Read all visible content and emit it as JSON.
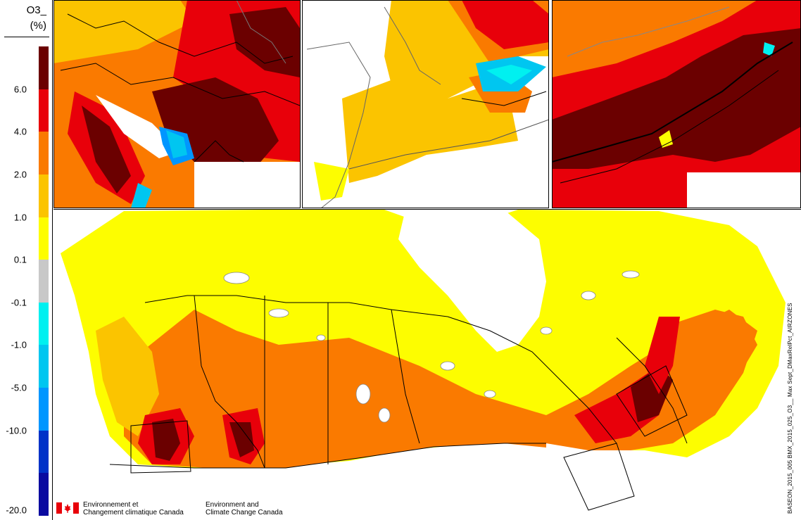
{
  "legend": {
    "title_line1": "O3_",
    "title_line2": "(%)",
    "bins": [
      {
        "color": "#6b0000"
      },
      {
        "color": "#e8000a"
      },
      {
        "color": "#fa7a00"
      },
      {
        "color": "#fbc400"
      },
      {
        "color": "#fdfd00"
      },
      {
        "color": "#c8c8c8"
      },
      {
        "color": "#00f0f0"
      },
      {
        "color": "#00c6f0"
      },
      {
        "color": "#0096ff"
      },
      {
        "color": "#0032c8"
      },
      {
        "color": "#0a0aa0"
      }
    ],
    "tick_labels": [
      "6.0",
      "4.0",
      "2.0",
      "1.0",
      "0.1",
      "-0.1",
      "-1.0",
      "-5.0",
      "-10.0",
      "-20.0"
    ]
  },
  "branding": {
    "french_line1": "Environnement et",
    "french_line2": "Changement climatique Canada",
    "english_line1": "Environment and",
    "english_line2": "Climate Change Canada"
  },
  "run_id": "BASEON_2015_005 BMX_2015_025_O3__ Max Sept_DMaxRelPct_AIRZONES",
  "colors": {
    "land_default": "#fdfd00",
    "water": "#ffffff",
    "border": "#000000",
    "lakes_outline": "#888888"
  }
}
